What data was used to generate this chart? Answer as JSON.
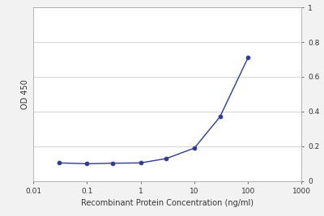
{
  "x": [
    0.03,
    0.1,
    0.3,
    1,
    3,
    10,
    30,
    100
  ],
  "y": [
    0.105,
    0.1,
    0.103,
    0.105,
    0.13,
    0.19,
    0.37,
    0.71
  ],
  "line_color": "#2e3b8e",
  "marker": "o",
  "marker_size": 3.5,
  "marker_facecolor": "#2e3b8e",
  "xlabel": "Recombinant Protein Concentration (ng/ml)",
  "ylabel": "OD 450",
  "xlim": [
    0.01,
    1000
  ],
  "ylim": [
    0,
    1.0
  ],
  "yticks": [
    0,
    0.2,
    0.4,
    0.6,
    0.8,
    1.0
  ],
  "ytick_labels": [
    "0",
    "0.2",
    "0.4",
    "0.6",
    "0.8",
    "1"
  ],
  "xticks": [
    0.01,
    0.1,
    1,
    10,
    100,
    1000
  ],
  "xtick_labels": [
    "0.01",
    "0.1",
    "1",
    "10",
    "100",
    "1000"
  ],
  "background_color": "#f2f2f2",
  "plot_bg_color": "#ffffff",
  "grid_color": "#cccccc",
  "label_fontsize": 7,
  "tick_fontsize": 6.5
}
